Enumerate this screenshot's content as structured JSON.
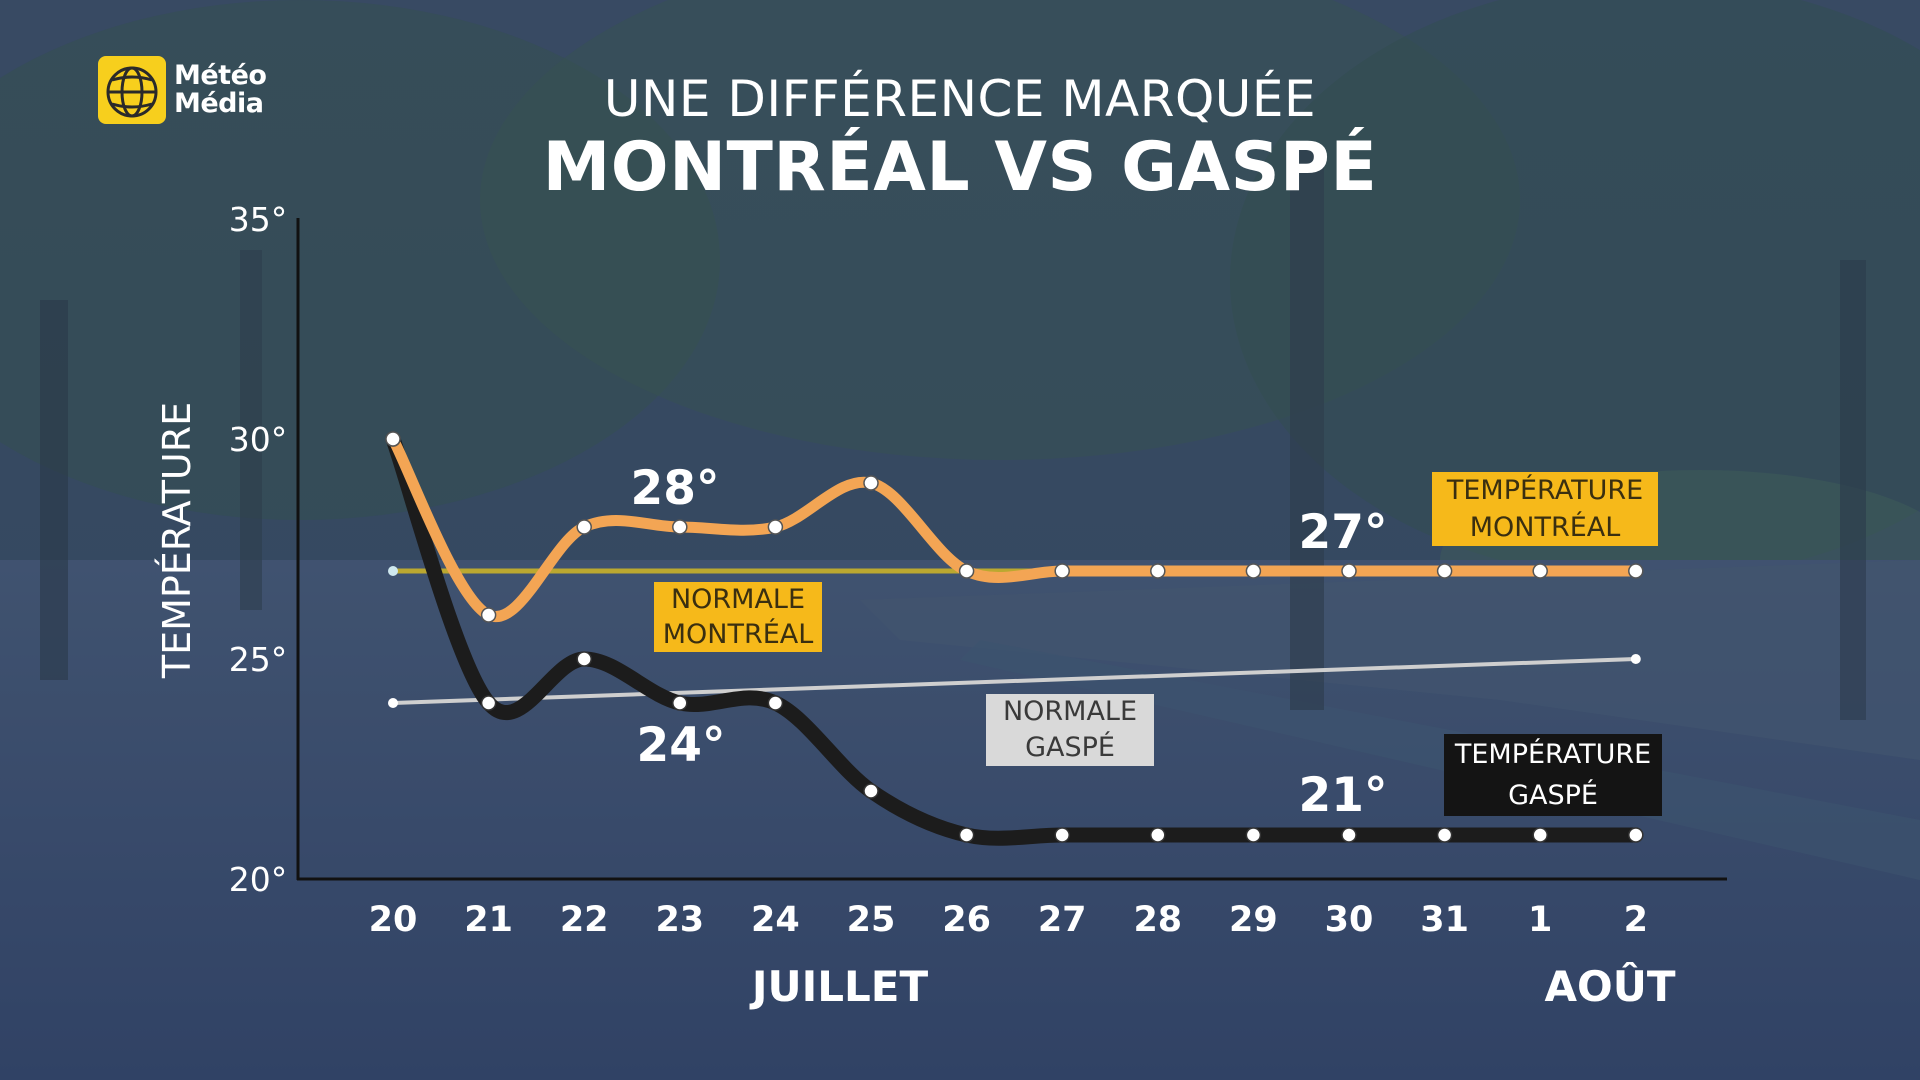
{
  "logo": {
    "line1": "Météo",
    "line2": "Média"
  },
  "title": "UNE DIFFÉRENCE MARQUÉE",
  "subtitle": "MONTRÉAL VS GASPÉ",
  "chart_data": {
    "type": "line",
    "ylabel": "TEMPÉRATURE",
    "ylim": [
      20,
      35
    ],
    "yticks": [
      "20°",
      "25°",
      "30°",
      "35°"
    ],
    "yticks_values": [
      20,
      25,
      30,
      35
    ],
    "categories": [
      "20",
      "21",
      "22",
      "23",
      "24",
      "25",
      "26",
      "27",
      "28",
      "29",
      "30",
      "31",
      "1",
      "2"
    ],
    "month_labels": [
      {
        "label": "JUILLET",
        "at_category": "24.7"
      },
      {
        "label": "AOÛT",
        "at_category": "2"
      }
    ],
    "series": [
      {
        "name": "TEMPÉRATURE MONTRÉAL",
        "color": "#f3a554",
        "values": [
          30,
          26,
          28,
          28,
          28,
          29,
          27,
          27,
          27,
          27,
          27,
          27,
          27,
          27
        ]
      },
      {
        "name": "TEMPÉRATURE GASPÉ",
        "color": "#1c1c1c",
        "values": [
          30,
          24,
          25,
          24,
          24,
          22,
          21,
          21,
          21,
          21,
          21,
          21,
          21,
          21
        ]
      },
      {
        "name": "NORMALE MONTRÉAL",
        "color": "#c9b22a",
        "values": [
          27,
          27
        ],
        "x": [
          0,
          13
        ]
      },
      {
        "name": "NORMALE GASPÉ",
        "color": "#cfcfcf",
        "values": [
          24,
          25
        ],
        "x": [
          0,
          13
        ]
      }
    ],
    "annotations": [
      {
        "text": "28°",
        "series": "TEMPÉRATURE MONTRÉAL"
      },
      {
        "text": "27°",
        "series": "TEMPÉRATURE MONTRÉAL"
      },
      {
        "text": "24°",
        "series": "TEMPÉRATURE GASPÉ"
      },
      {
        "text": "21°",
        "series": "TEMPÉRATURE GASPÉ"
      }
    ],
    "label_boxes": {
      "normale_montreal": [
        "NORMALE",
        "MONTRÉAL"
      ],
      "normale_gaspe": [
        "NORMALE",
        "GASPÉ"
      ],
      "temp_montreal": [
        "TEMPÉRATURE",
        "MONTRÉAL"
      ],
      "temp_gaspe": [
        "TEMPÉRATURE",
        "GASPÉ"
      ]
    },
    "colors": {
      "yellow_box": "#f6b91a",
      "gray_box": "#d9d9d9",
      "black_box": "#141414"
    }
  }
}
